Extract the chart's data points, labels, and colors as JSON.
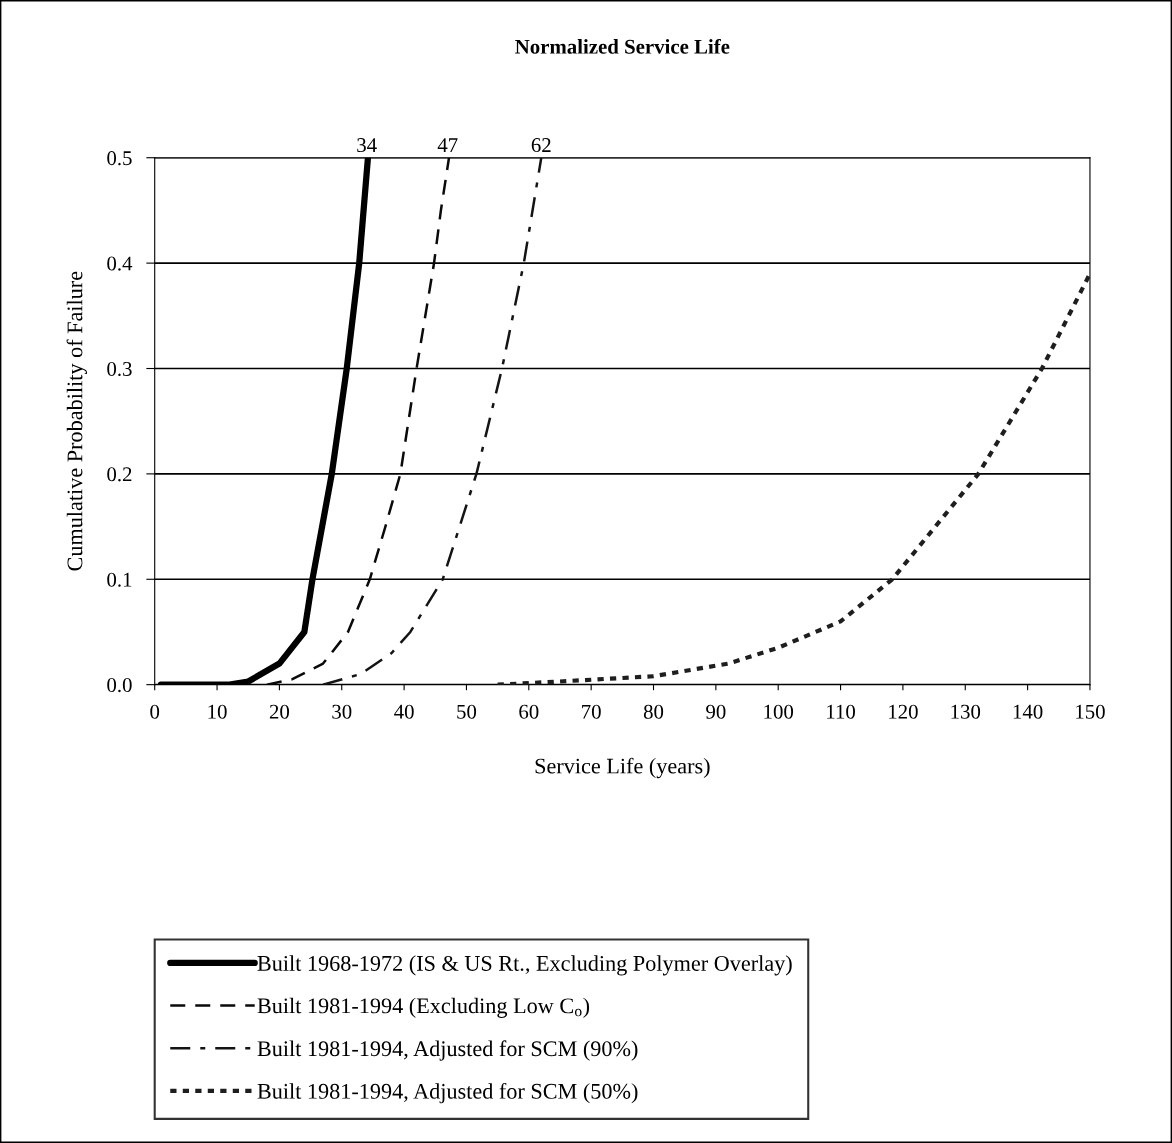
{
  "chart_data": {
    "type": "line",
    "title": "Normalized Service Life",
    "xlabel": "Service Life (years)",
    "ylabel": "Cumulative Probability of Failure",
    "xlim": [
      0,
      150
    ],
    "xticks": [
      0,
      10,
      20,
      30,
      40,
      50,
      60,
      70,
      80,
      90,
      100,
      110,
      120,
      130,
      140,
      150
    ],
    "ylim": [
      0,
      0.5
    ],
    "yticks": [
      {
        "value": 0,
        "label": "0.0"
      },
      0.1,
      0.2,
      0.3,
      0.4,
      0.5
    ],
    "grid": "y",
    "legend": "bottom",
    "marker": "none",
    "annotations": [
      {
        "text": "34",
        "x": 34,
        "y": 0.5
      },
      {
        "text": "47",
        "x": 47,
        "y": 0.5
      },
      {
        "text": "62",
        "x": 62,
        "y": 0.5
      }
    ],
    "series": [
      {
        "name": "Built 1968-1972 (IS & US Rt., Excluding Polymer Overlay)",
        "color": "#000000",
        "line_style": "solid",
        "x": [
          1,
          12,
          15,
          20,
          24,
          25.3,
          28.4,
          30.8,
          32.8,
          34.2
        ],
        "values": [
          0,
          0,
          0.003,
          0.02,
          0.05,
          0.1,
          0.2,
          0.3,
          0.4,
          0.5
        ]
      },
      {
        "name": "Built 1981-1994 (Excluding Low C$_{o}$)",
        "color": "#0a0a0a",
        "line_style": "dashed",
        "x": [
          18,
          22,
          27,
          31,
          34.5,
          37,
          39.4,
          42.0,
          44.8,
          45.9,
          47.2
        ],
        "values": [
          0,
          0.005,
          0.02,
          0.05,
          0.1,
          0.15,
          0.2,
          0.3,
          0.4,
          0.45,
          0.5
        ]
      },
      {
        "name": "Built 1981-1994, Adjusted for SCM (90%)",
        "color": "#141414",
        "line_style": "dashdot",
        "x": [
          27,
          33,
          38,
          41,
          46.2,
          51.6,
          55.7,
          59.2,
          62.0
        ],
        "values": [
          0,
          0.01,
          0.03,
          0.05,
          0.1,
          0.2,
          0.3,
          0.4,
          0.5
        ]
      },
      {
        "name": "Built 1981-1994, Adjusted for SCM (50%)",
        "color": "#1e1e1e",
        "line_style": "dotted",
        "x": [
          55,
          65,
          80,
          92,
          100,
          110,
          118.3,
          132.1,
          142.3,
          150
        ],
        "values": [
          0,
          0.003,
          0.008,
          0.02,
          0.035,
          0.06,
          0.1,
          0.2,
          0.3,
          0.39
        ]
      }
    ]
  }
}
